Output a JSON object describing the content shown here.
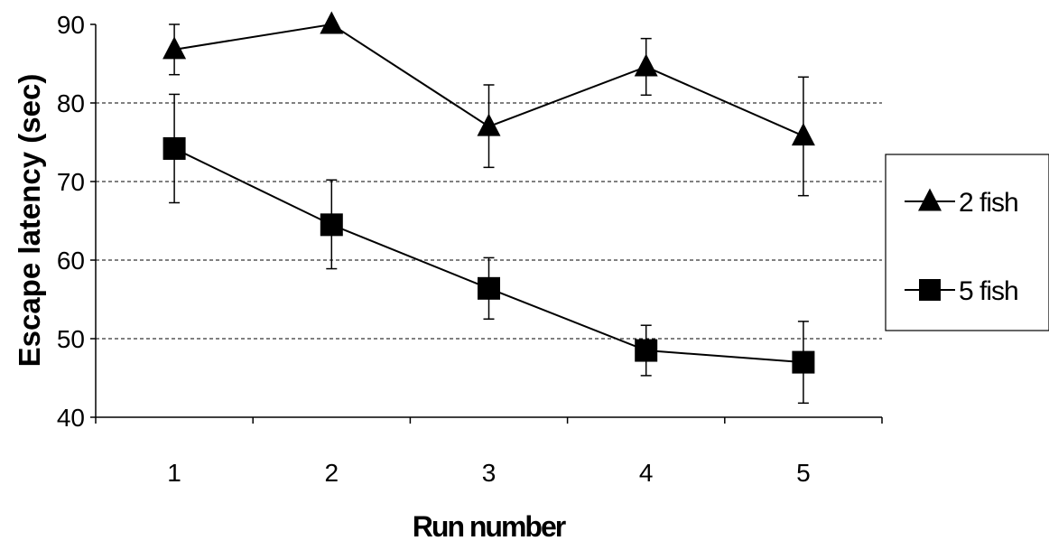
{
  "chart_data": {
    "type": "line",
    "title": "",
    "xlabel": "Run number",
    "ylabel": "Escape latency (sec)",
    "categories": [
      "1",
      "2",
      "3",
      "4",
      "5"
    ],
    "ylim": [
      40,
      90
    ],
    "yticks": [
      40,
      50,
      60,
      70,
      80,
      90
    ],
    "grid": "horizontal dashed",
    "legend_position": "right",
    "series": [
      {
        "name": "2 fish",
        "marker": "triangle",
        "values": [
          86.8,
          90.0,
          77.0,
          84.6,
          75.8
        ],
        "error_low": [
          83.6,
          90.0,
          71.8,
          81.0,
          68.2
        ],
        "error_high": [
          90.0,
          90.0,
          82.3,
          88.2,
          83.3
        ]
      },
      {
        "name": "5 fish",
        "marker": "square",
        "values": [
          74.2,
          64.5,
          56.4,
          48.5,
          47.0
        ],
        "error_low": [
          67.3,
          58.9,
          52.5,
          45.3,
          41.8
        ],
        "error_high": [
          81.1,
          70.2,
          60.3,
          51.7,
          52.2
        ]
      }
    ]
  }
}
